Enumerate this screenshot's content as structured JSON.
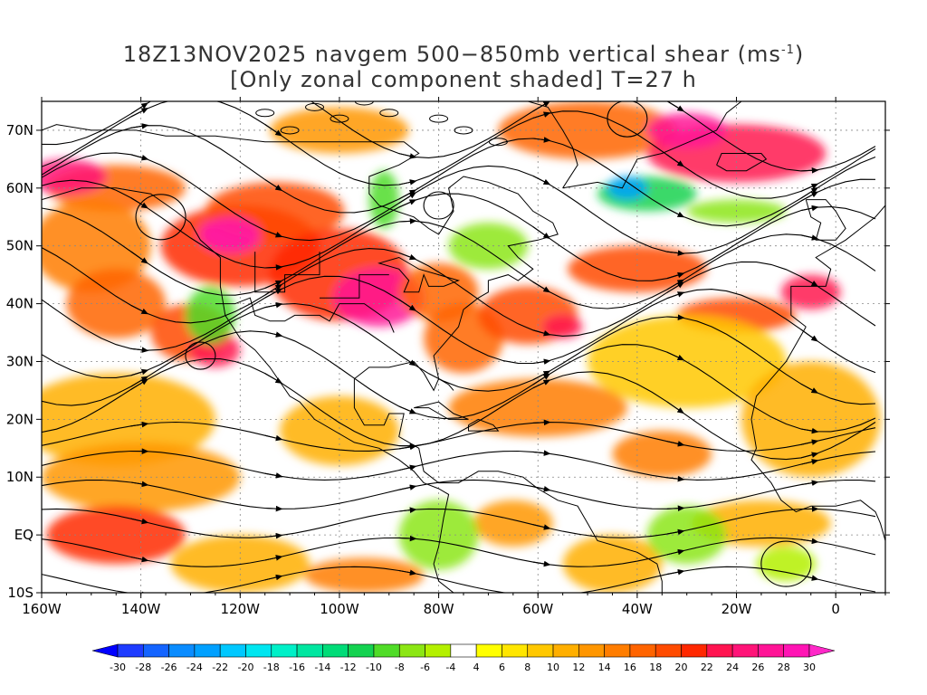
{
  "title": {
    "line1": "18Z13NOV2025 navgem 500−850mb vertical shear (ms",
    "line1_unit_sup": "-1",
    "line1_close": ")",
    "line2": "[Only zonal component shaded] T=27 h"
  },
  "map": {
    "lon_range": [
      -160,
      10
    ],
    "lat_range": [
      -10,
      75
    ],
    "lon_ticks": [
      {
        "value": -160,
        "label": "160W"
      },
      {
        "value": -140,
        "label": "140W"
      },
      {
        "value": -120,
        "label": "120W"
      },
      {
        "value": -100,
        "label": "100W"
      },
      {
        "value": -80,
        "label": "80W"
      },
      {
        "value": -60,
        "label": "60W"
      },
      {
        "value": -40,
        "label": "40W"
      },
      {
        "value": -20,
        "label": "20W"
      },
      {
        "value": 0,
        "label": "0"
      }
    ],
    "lat_ticks": [
      {
        "value": 70,
        "label": "70N"
      },
      {
        "value": 60,
        "label": "60N"
      },
      {
        "value": 50,
        "label": "50N"
      },
      {
        "value": 40,
        "label": "40N"
      },
      {
        "value": 30,
        "label": "30N"
      },
      {
        "value": 20,
        "label": "20N"
      },
      {
        "value": 10,
        "label": "10N"
      },
      {
        "value": 0,
        "label": "EQ"
      },
      {
        "value": -10,
        "label": "10S"
      }
    ]
  },
  "colorbar": {
    "labels": [
      "-30",
      "-28",
      "-26",
      "-24",
      "-22",
      "-20",
      "-18",
      "-16",
      "-14",
      "-12",
      "-10",
      "-8",
      "-6",
      "-4",
      "4",
      "6",
      "8",
      "10",
      "12",
      "14",
      "16",
      "18",
      "20",
      "22",
      "24",
      "26",
      "28",
      "30"
    ],
    "colors": [
      "#1e3cff",
      "#1464ff",
      "#0a8cff",
      "#00a0ff",
      "#00c8ff",
      "#00e6f0",
      "#00f0c8",
      "#00e6a0",
      "#00dc78",
      "#14d250",
      "#50dc28",
      "#8ce614",
      "#b4f000",
      "#ffffff",
      "#ffff00",
      "#ffe600",
      "#ffc800",
      "#ffaf00",
      "#ff9600",
      "#ff7d00",
      "#ff6400",
      "#ff4b00",
      "#ff2800",
      "#ff1450",
      "#ff1478",
      "#ff1496",
      "#ff14b4"
    ],
    "left_arrow_color": "#0000ff",
    "right_arrow_color": "#ff28c8"
  },
  "shear_blobs": [
    {
      "lon": -120,
      "lat": 50,
      "rx": 16,
      "ry": 7,
      "v": 20
    },
    {
      "lon": -113,
      "lat": 56,
      "rx": 14,
      "ry": 5,
      "v": 18
    },
    {
      "lon": -122,
      "lat": 52,
      "rx": 6,
      "ry": 3,
      "v": 28
    },
    {
      "lon": -145,
      "lat": 60,
      "rx": 14,
      "ry": 4,
      "v": 16
    },
    {
      "lon": -155,
      "lat": 62,
      "rx": 8,
      "ry": 3,
      "v": 24
    },
    {
      "lon": -150,
      "lat": 50,
      "rx": 12,
      "ry": 8,
      "v": 14
    },
    {
      "lon": -145,
      "lat": 40,
      "rx": 10,
      "ry": 6,
      "v": 16
    },
    {
      "lon": -130,
      "lat": 35,
      "rx": 8,
      "ry": 5,
      "v": 18
    },
    {
      "lon": -125,
      "lat": 32,
      "rx": 5,
      "ry": 3,
      "v": 22
    },
    {
      "lon": -100,
      "lat": 45,
      "rx": 14,
      "ry": 8,
      "v": 20
    },
    {
      "lon": -92,
      "lat": 41,
      "rx": 9,
      "ry": 5,
      "v": 26
    },
    {
      "lon": -80,
      "lat": 42,
      "rx": 8,
      "ry": 5,
      "v": 16
    },
    {
      "lon": -75,
      "lat": 34,
      "rx": 8,
      "ry": 6,
      "v": 16
    },
    {
      "lon": -62,
      "lat": 38,
      "rx": 10,
      "ry": 5,
      "v": 18
    },
    {
      "lon": -55,
      "lat": 36,
      "rx": 4,
      "ry": 2,
      "v": 22
    },
    {
      "lon": -40,
      "lat": 46,
      "rx": 14,
      "ry": 4,
      "v": 18
    },
    {
      "lon": -20,
      "lat": 38,
      "rx": 12,
      "ry": 3,
      "v": 18
    },
    {
      "lon": -5,
      "lat": 42,
      "rx": 6,
      "ry": 3,
      "v": 22
    },
    {
      "lon": -60,
      "lat": 22,
      "rx": 18,
      "ry": 5,
      "v": 14
    },
    {
      "lon": -30,
      "lat": 30,
      "rx": 20,
      "ry": 8,
      "v": 8
    },
    {
      "lon": -5,
      "lat": 20,
      "rx": 14,
      "ry": 10,
      "v": 10
    },
    {
      "lon": -35,
      "lat": 14,
      "rx": 10,
      "ry": 4,
      "v": 14
    },
    {
      "lon": -145,
      "lat": 20,
      "rx": 20,
      "ry": 8,
      "v": 10
    },
    {
      "lon": -140,
      "lat": 10,
      "rx": 20,
      "ry": 6,
      "v": 12
    },
    {
      "lon": -100,
      "lat": 18,
      "rx": 12,
      "ry": 6,
      "v": 10
    },
    {
      "lon": -145,
      "lat": 0,
      "rx": 14,
      "ry": 5,
      "v": 20
    },
    {
      "lon": -120,
      "lat": -5,
      "rx": 14,
      "ry": 5,
      "v": 10
    },
    {
      "lon": -95,
      "lat": -7,
      "rx": 12,
      "ry": 3,
      "v": 14
    },
    {
      "lon": -65,
      "lat": 2,
      "rx": 8,
      "ry": 4,
      "v": 12
    },
    {
      "lon": -45,
      "lat": -5,
      "rx": 10,
      "ry": 5,
      "v": 10
    },
    {
      "lon": -15,
      "lat": 2,
      "rx": 14,
      "ry": 4,
      "v": 10
    },
    {
      "lon": -50,
      "lat": 70,
      "rx": 18,
      "ry": 5,
      "v": 16
    },
    {
      "lon": -20,
      "lat": 66,
      "rx": 18,
      "ry": 5,
      "v": 22
    },
    {
      "lon": -30,
      "lat": 70,
      "rx": 8,
      "ry": 3,
      "v": 26
    },
    {
      "lon": -100,
      "lat": 70,
      "rx": 14,
      "ry": 4,
      "v": 12
    },
    {
      "lon": -126,
      "lat": 38,
      "rx": 5,
      "ry": 5,
      "v": -10
    },
    {
      "lon": -91,
      "lat": 58,
      "rx": 3,
      "ry": 5,
      "v": -10
    },
    {
      "lon": -70,
      "lat": 50,
      "rx": 8,
      "ry": 4,
      "v": -8
    },
    {
      "lon": -38,
      "lat": 59,
      "rx": 10,
      "ry": 3,
      "v": -12
    },
    {
      "lon": -42,
      "lat": 60,
      "rx": 4,
      "ry": 2,
      "v": -24
    },
    {
      "lon": -20,
      "lat": 56,
      "rx": 10,
      "ry": 2,
      "v": -8
    },
    {
      "lon": -80,
      "lat": 0,
      "rx": 8,
      "ry": 6,
      "v": -8
    },
    {
      "lon": -30,
      "lat": 0,
      "rx": 8,
      "ry": 5,
      "v": -8
    },
    {
      "lon": -10,
      "lat": -5,
      "rx": 6,
      "ry": 3,
      "v": -6
    }
  ]
}
